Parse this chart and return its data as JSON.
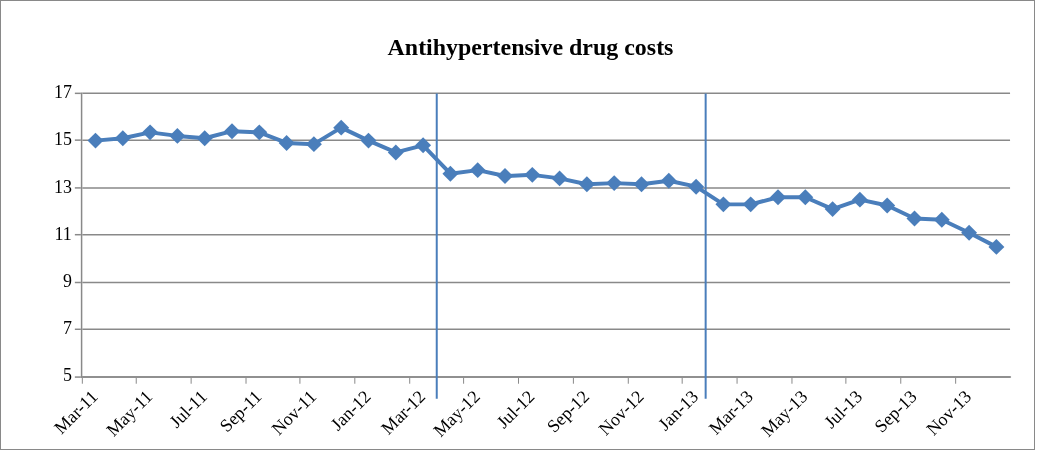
{
  "chart_data": {
    "type": "line",
    "title": "Antihypertensive drug costs",
    "categories": [
      "Mar-11",
      null,
      "May-11",
      null,
      "Jul-11",
      null,
      "Sep-11",
      null,
      "Nov-11",
      null,
      "Jan-12",
      null,
      "Mar-12",
      null,
      "May-12",
      null,
      "Jul-12",
      null,
      "Sep-12",
      null,
      "Nov-12",
      null,
      "Jan-13",
      null,
      "Mar-13",
      null,
      "May-13",
      null,
      "Jul-13",
      null,
      "Sep-13",
      null,
      "Nov-13",
      null
    ],
    "series": [
      {
        "color": "#4a7ebb",
        "values": [
          15.0,
          15.1,
          15.35,
          15.2,
          15.1,
          15.4,
          15.35,
          14.9,
          14.85,
          15.55,
          15.0,
          14.5,
          14.8,
          13.6,
          13.75,
          13.5,
          13.55,
          13.4,
          13.15,
          13.2,
          13.15,
          13.3,
          13.05,
          12.3,
          12.3,
          12.6,
          12.6,
          12.1,
          12.5,
          12.25,
          11.7,
          11.65,
          11.1,
          10.5
        ]
      }
    ],
    "ylim": [
      5,
      17
    ],
    "yticks": [
      5,
      7,
      9,
      11,
      13,
      15,
      17
    ],
    "grid": "y",
    "legend": false,
    "marker": "diamond",
    "line_style": "solid"
  }
}
